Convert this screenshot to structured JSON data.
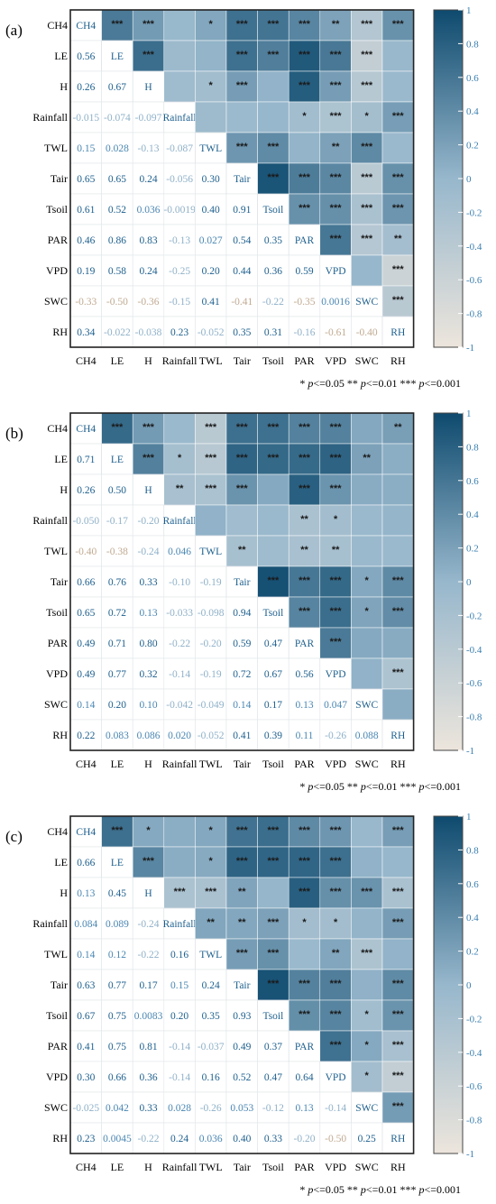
{
  "chart_data": [
    {
      "type": "heatmap",
      "panel_label": "(a)",
      "variables": [
        "CH4",
        "LE",
        "H",
        "Rainfall",
        "TWL",
        "Tair",
        "Tsoil",
        "PAR",
        "VPD",
        "SWC",
        "RH"
      ],
      "lower": [
        [
          "0.56"
        ],
        [
          "0.26",
          "0.67"
        ],
        [
          "-0.015",
          "-0.074",
          "-0.097"
        ],
        [
          "0.15",
          "0.028",
          "-0.13",
          "-0.087"
        ],
        [
          "0.65",
          "0.65",
          "0.24",
          "-0.056",
          "0.30"
        ],
        [
          "0.61",
          "0.52",
          "0.036",
          "-0.0019",
          "0.40",
          "0.91"
        ],
        [
          "0.46",
          "0.86",
          "0.83",
          "-0.13",
          "0.027",
          "0.54",
          "0.35"
        ],
        [
          "0.19",
          "0.58",
          "0.24",
          "-0.25",
          "0.20",
          "0.44",
          "0.36",
          "0.59"
        ],
        [
          "-0.33",
          "-0.50",
          "-0.36",
          "-0.15",
          "0.41",
          "-0.41",
          "-0.22",
          "-0.35",
          "0.0016"
        ],
        [
          "0.34",
          "-0.022",
          "-0.038",
          "0.23",
          "-0.052",
          "0.35",
          "0.31",
          "-0.16",
          "-0.61",
          "-0.40"
        ]
      ],
      "significance": {
        "CH4": {
          "LE": "***",
          "H": "***",
          "TWL": "*",
          "Tair": "***",
          "Tsoil": "***",
          "PAR": "***",
          "VPD": "**",
          "SWC": "***",
          "RH": "***"
        },
        "LE": {
          "H": "***",
          "Tair": "***",
          "Tsoil": "***",
          "PAR": "***",
          "VPD": "***",
          "SWC": "***"
        },
        "H": {
          "TWL": "*",
          "Tair": "***",
          "PAR": "***",
          "VPD": "***",
          "SWC": "***"
        },
        "Rainfall": {
          "PAR": "*",
          "VPD": "***",
          "SWC": "*",
          "RH": "***"
        },
        "TWL": {
          "Tair": "***",
          "Tsoil": "***",
          "VPD": "**",
          "SWC": "***"
        },
        "Tair": {
          "Tsoil": "***",
          "PAR": "***",
          "VPD": "***",
          "SWC": "***",
          "RH": "***"
        },
        "Tsoil": {
          "PAR": "***",
          "VPD": "***",
          "SWC": "***",
          "RH": "***"
        },
        "PAR": {
          "VPD": "***",
          "SWC": "***",
          "RH": "**"
        },
        "VPD": {
          "RH": "***"
        },
        "SWC": {
          "RH": "***"
        }
      }
    },
    {
      "type": "heatmap",
      "panel_label": "(b)",
      "variables": [
        "CH4",
        "LE",
        "H",
        "Rainfall",
        "TWL",
        "Tair",
        "Tsoil",
        "PAR",
        "VPD",
        "SWC",
        "RH"
      ],
      "lower": [
        [
          "0.71"
        ],
        [
          "0.26",
          "0.50"
        ],
        [
          "-0.050",
          "-0.17",
          "-0.20"
        ],
        [
          "-0.40",
          "-0.38",
          "-0.24",
          "0.046"
        ],
        [
          "0.66",
          "0.76",
          "0.33",
          "-0.10",
          "-0.19"
        ],
        [
          "0.65",
          "0.72",
          "0.13",
          "-0.033",
          "-0.098",
          "0.94"
        ],
        [
          "0.49",
          "0.71",
          "0.80",
          "-0.22",
          "-0.20",
          "0.59",
          "0.47"
        ],
        [
          "0.49",
          "0.77",
          "0.32",
          "-0.14",
          "-0.19",
          "0.72",
          "0.67",
          "0.56"
        ],
        [
          "0.14",
          "0.20",
          "0.10",
          "-0.042",
          "-0.049",
          "0.14",
          "0.17",
          "0.13",
          "0.047"
        ],
        [
          "0.22",
          "0.083",
          "0.086",
          "0.020",
          "-0.052",
          "0.41",
          "0.39",
          "0.11",
          "-0.26",
          "0.088"
        ]
      ],
      "significance": {
        "CH4": {
          "LE": "***",
          "H": "***",
          "TWL": "***",
          "Tair": "***",
          "Tsoil": "***",
          "PAR": "***",
          "VPD": "***",
          "RH": "**"
        },
        "LE": {
          "H": "***",
          "Rainfall": "*",
          "TWL": "***",
          "Tair": "***",
          "Tsoil": "***",
          "PAR": "***",
          "VPD": "***",
          "SWC": "**"
        },
        "H": {
          "Rainfall": "**",
          "TWL": "***",
          "Tair": "***",
          "PAR": "***",
          "VPD": "***"
        },
        "Rainfall": {
          "PAR": "**",
          "VPD": "*"
        },
        "TWL": {
          "Tair": "**",
          "PAR": "**",
          "VPD": "**"
        },
        "Tair": {
          "Tsoil": "***",
          "PAR": "***",
          "VPD": "***",
          "SWC": "*",
          "RH": "***"
        },
        "Tsoil": {
          "PAR": "***",
          "VPD": "***",
          "SWC": "*",
          "RH": "***"
        },
        "PAR": {
          "VPD": "***"
        },
        "VPD": {
          "RH": "***"
        }
      }
    },
    {
      "type": "heatmap",
      "panel_label": "(c)",
      "variables": [
        "CH4",
        "LE",
        "H",
        "Rainfall",
        "TWL",
        "Tair",
        "Tsoil",
        "PAR",
        "VPD",
        "SWC",
        "RH"
      ],
      "lower": [
        [
          "0.66"
        ],
        [
          "0.13",
          "0.45"
        ],
        [
          "0.084",
          "0.089",
          "-0.24"
        ],
        [
          "0.14",
          "0.12",
          "-0.22",
          "0.16"
        ],
        [
          "0.63",
          "0.77",
          "0.17",
          "0.15",
          "0.24"
        ],
        [
          "0.67",
          "0.75",
          "0.0083",
          "0.20",
          "0.35",
          "0.93"
        ],
        [
          "0.41",
          "0.75",
          "0.81",
          "-0.14",
          "-0.037",
          "0.49",
          "0.37"
        ],
        [
          "0.30",
          "0.66",
          "0.36",
          "-0.14",
          "0.16",
          "0.52",
          "0.47",
          "0.64"
        ],
        [
          "-0.025",
          "0.042",
          "0.33",
          "0.028",
          "-0.26",
          "0.053",
          "-0.12",
          "0.13",
          "-0.14"
        ],
        [
          "0.23",
          "0.0045",
          "-0.22",
          "0.24",
          "0.036",
          "0.40",
          "0.33",
          "-0.20",
          "-0.50",
          "0.25"
        ]
      ],
      "significance": {
        "CH4": {
          "LE": "***",
          "H": "*",
          "TWL": "*",
          "Tair": "***",
          "Tsoil": "***",
          "PAR": "***",
          "VPD": "***",
          "RH": "***"
        },
        "LE": {
          "H": "***",
          "TWL": "*",
          "Tair": "***",
          "Tsoil": "***",
          "PAR": "***",
          "VPD": "***"
        },
        "H": {
          "Rainfall": "***",
          "TWL": "***",
          "Tair": "**",
          "PAR": "***",
          "VPD": "***",
          "SWC": "***",
          "RH": "***"
        },
        "Rainfall": {
          "TWL": "**",
          "Tair": "**",
          "Tsoil": "***",
          "PAR": "*",
          "VPD": "*",
          "RH": "***"
        },
        "TWL": {
          "Tair": "***",
          "Tsoil": "***",
          "VPD": "**",
          "SWC": "***"
        },
        "Tair": {
          "Tsoil": "***",
          "PAR": "***",
          "VPD": "***",
          "RH": "***"
        },
        "Tsoil": {
          "PAR": "***",
          "VPD": "***",
          "SWC": "*",
          "RH": "***"
        },
        "PAR": {
          "VPD": "***",
          "SWC": "*",
          "RH": "***"
        },
        "VPD": {
          "SWC": "*",
          "RH": "***"
        },
        "SWC": {
          "RH": "***"
        }
      }
    }
  ],
  "colorbar": {
    "range": [
      -1,
      1
    ],
    "ticks": [
      "1",
      "0.8",
      "0.6",
      "0.4",
      "0.2",
      "0",
      "-0.2",
      "-0.4",
      "-0.6",
      "-0.8",
      "-1"
    ],
    "colors": {
      "positive": "#0e4a6e",
      "mid": "#97b7cc",
      "negative": "#ece5dc"
    }
  },
  "legend_parts": [
    "* ",
    "p",
    "<=0.05  ** ",
    "p",
    "<=0.01  *** ",
    "p",
    "<=0.001"
  ]
}
